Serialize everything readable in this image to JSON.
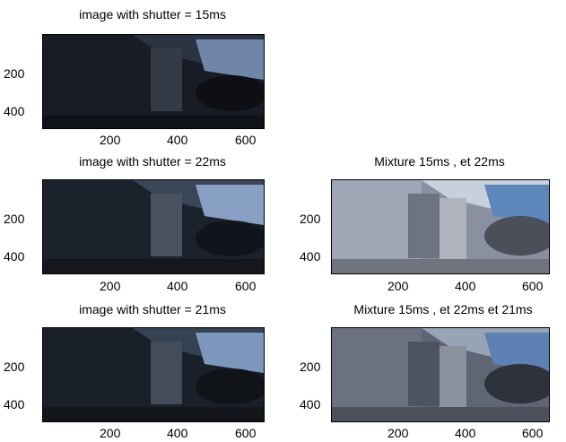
{
  "panels": [
    {
      "title": "image with shutter = 15ms",
      "yticks": [
        "200",
        "400"
      ],
      "xticks": [
        "200",
        "400",
        "600"
      ],
      "exposure": "dark15"
    },
    {
      "title": "image with shutter = 22ms",
      "yticks": [
        "200",
        "400"
      ],
      "xticks": [
        "200",
        "400",
        "600"
      ],
      "exposure": "dark22"
    },
    {
      "title": "Mixture 15ms , et 22ms",
      "yticks": [
        "200",
        "400"
      ],
      "xticks": [
        "200",
        "400",
        "600"
      ],
      "exposure": "bright"
    },
    {
      "title": "image with shutter = 21ms",
      "yticks": [
        "200",
        "400"
      ],
      "xticks": [
        "200",
        "400",
        "600"
      ],
      "exposure": "dark21"
    },
    {
      "title": "Mixture 15ms , et 22ms et 21ms",
      "yticks": [
        "200",
        "400"
      ],
      "xticks": [
        "200",
        "400",
        "600"
      ],
      "exposure": "bright2"
    }
  ],
  "colors": {
    "dark_bg": "#1a1f26",
    "light_bg": "#7d8493",
    "window": "#5a7fb0"
  }
}
